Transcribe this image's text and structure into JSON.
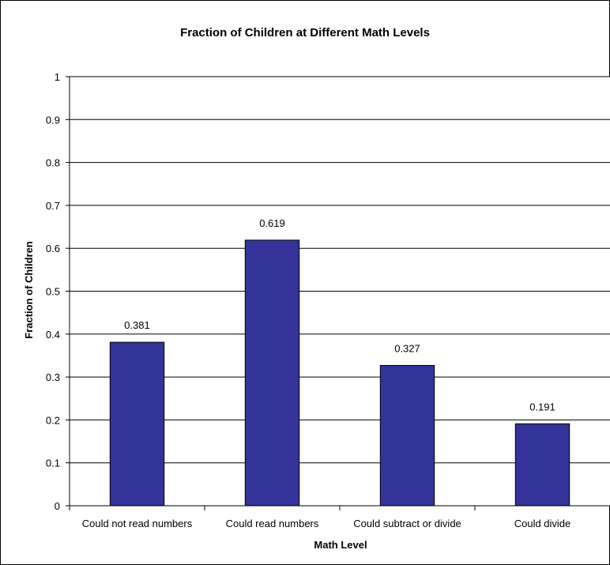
{
  "chart_data": {
    "type": "bar",
    "title": "Fraction of Children at Different Math Levels",
    "xlabel": "Math Level",
    "ylabel": "Fraction of Children",
    "categories": [
      "Could not read numbers",
      "Could read numbers",
      "Could subtract or divide",
      "Could divide"
    ],
    "values": [
      0.381,
      0.619,
      0.327,
      0.191
    ],
    "data_labels": [
      "0.381",
      "0.619",
      "0.327",
      "0.191"
    ],
    "ylim": [
      0,
      1
    ],
    "yticks": [
      "0",
      "0.1",
      "0.2",
      "0.3",
      "0.4",
      "0.5",
      "0.6",
      "0.7",
      "0.8",
      "0.9",
      "1"
    ],
    "grid": true,
    "legend": "none",
    "colors": {
      "bar_fill": "#333399",
      "bar_stroke": "#000000",
      "gridline": "#000000",
      "plot_background": "#ffffff",
      "chart_background": "#ffffff",
      "frame": "#000000"
    }
  }
}
